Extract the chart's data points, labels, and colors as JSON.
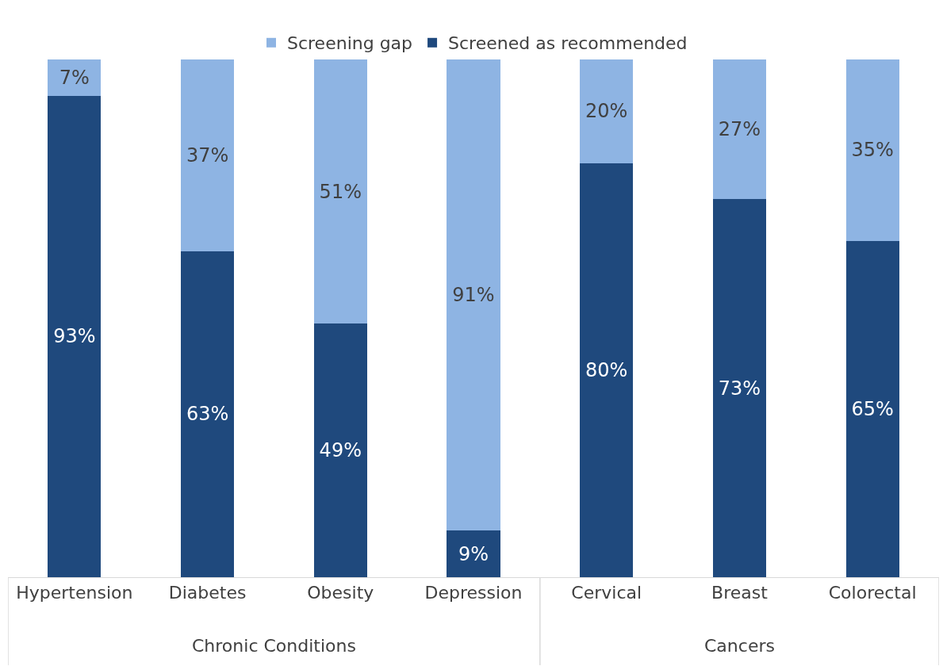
{
  "chart_data": {
    "type": "bar",
    "stacked": true,
    "legend": "top",
    "categories": [
      "Hypertension",
      "Diabetes",
      "Obesity",
      "Depression",
      "Cervical",
      "Breast",
      "Colorectal"
    ],
    "series": [
      {
        "name": "Screened as recommended",
        "color": "#1f497d",
        "values": [
          93,
          63,
          49,
          9,
          80,
          73,
          65
        ],
        "value_labels": [
          "93%",
          "63%",
          "49%",
          "9%",
          "80%",
          "73%",
          "65%"
        ]
      },
      {
        "name": "Screening gap",
        "color": "#8eb4e3",
        "values": [
          7,
          37,
          51,
          91,
          20,
          27,
          35
        ],
        "value_labels": [
          "7%",
          "37%",
          "51%",
          "91%",
          "20%",
          "27%",
          "35%"
        ]
      }
    ],
    "annotations": [
      "Chronic Conditions",
      "Cancers"
    ]
  }
}
